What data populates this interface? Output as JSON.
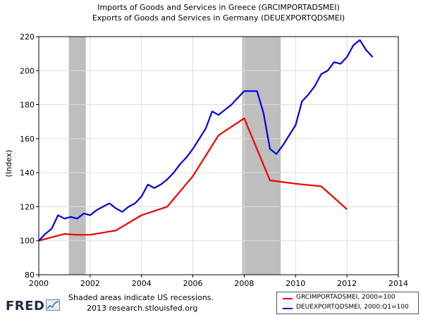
{
  "chart_data": {
    "type": "line",
    "title_lines": [
      "Imports of Goods and Services in Greece (GRCIMPORTADSMEI)",
      "Exports of Goods and Services in Germany (DEUEXPORTQDSMEI)"
    ],
    "ylabel": "(Index)",
    "xlabel": "",
    "xlim": [
      2000,
      2014
    ],
    "ylim": [
      80,
      220
    ],
    "x_ticks": [
      2000,
      2002,
      2004,
      2006,
      2008,
      2010,
      2012,
      2014
    ],
    "y_ticks": [
      80,
      100,
      120,
      140,
      160,
      180,
      200,
      220
    ],
    "grid": true,
    "legend_position": "bottom-right",
    "recessions": [
      [
        2001.17,
        2001.83
      ],
      [
        2007.92,
        2009.42
      ]
    ],
    "series": [
      {
        "name": "GRCIMPORTADSMEI, 2000=100",
        "color": "#ee0000",
        "x": [
          2000,
          2001,
          2001.5,
          2002,
          2003,
          2004,
          2005,
          2006,
          2007,
          2008,
          2009,
          2010,
          2011,
          2012
        ],
        "y": [
          100,
          104,
          103.5,
          103.5,
          106,
          115,
          120,
          138,
          162,
          172,
          135.5,
          133.5,
          132,
          118.5
        ]
      },
      {
        "name": "DEUEXPORTQDSMEI, 2000:Q1=100",
        "color": "#0000dd",
        "x": [
          2000,
          2000.25,
          2000.5,
          2000.75,
          2001,
          2001.25,
          2001.5,
          2001.75,
          2002,
          2002.25,
          2002.5,
          2002.75,
          2003,
          2003.25,
          2003.5,
          2003.75,
          2004,
          2004.25,
          2004.5,
          2004.75,
          2005,
          2005.25,
          2005.5,
          2005.75,
          2006,
          2006.25,
          2006.5,
          2006.75,
          2007,
          2007.25,
          2007.5,
          2007.75,
          2008,
          2008.25,
          2008.5,
          2008.75,
          2009,
          2009.25,
          2009.5,
          2009.75,
          2010,
          2010.25,
          2010.5,
          2010.75,
          2011,
          2011.25,
          2011.5,
          2011.75,
          2012,
          2012.25,
          2012.5,
          2012.75,
          2013
        ],
        "y": [
          100,
          104,
          107,
          115,
          113,
          114,
          113,
          116,
          115,
          118,
          120,
          122,
          119,
          117,
          120,
          122,
          126,
          133,
          131,
          133,
          136,
          140,
          145,
          149,
          154,
          160,
          166,
          176,
          174,
          177,
          180,
          184,
          188,
          188,
          188,
          175,
          154,
          151,
          156,
          162,
          168,
          182,
          186,
          191,
          198,
          200,
          205,
          204,
          208,
          215,
          218,
          212,
          208
        ]
      }
    ]
  },
  "footer": {
    "note_line1": "Shaded areas indicate US recessions.",
    "note_line2": "2013 research.stlouisfed.org",
    "logo_text": "FRED"
  },
  "colors": {
    "recession_shade": "#bebebe",
    "grid": "#dcdcdc",
    "plot_border": "#000000"
  }
}
